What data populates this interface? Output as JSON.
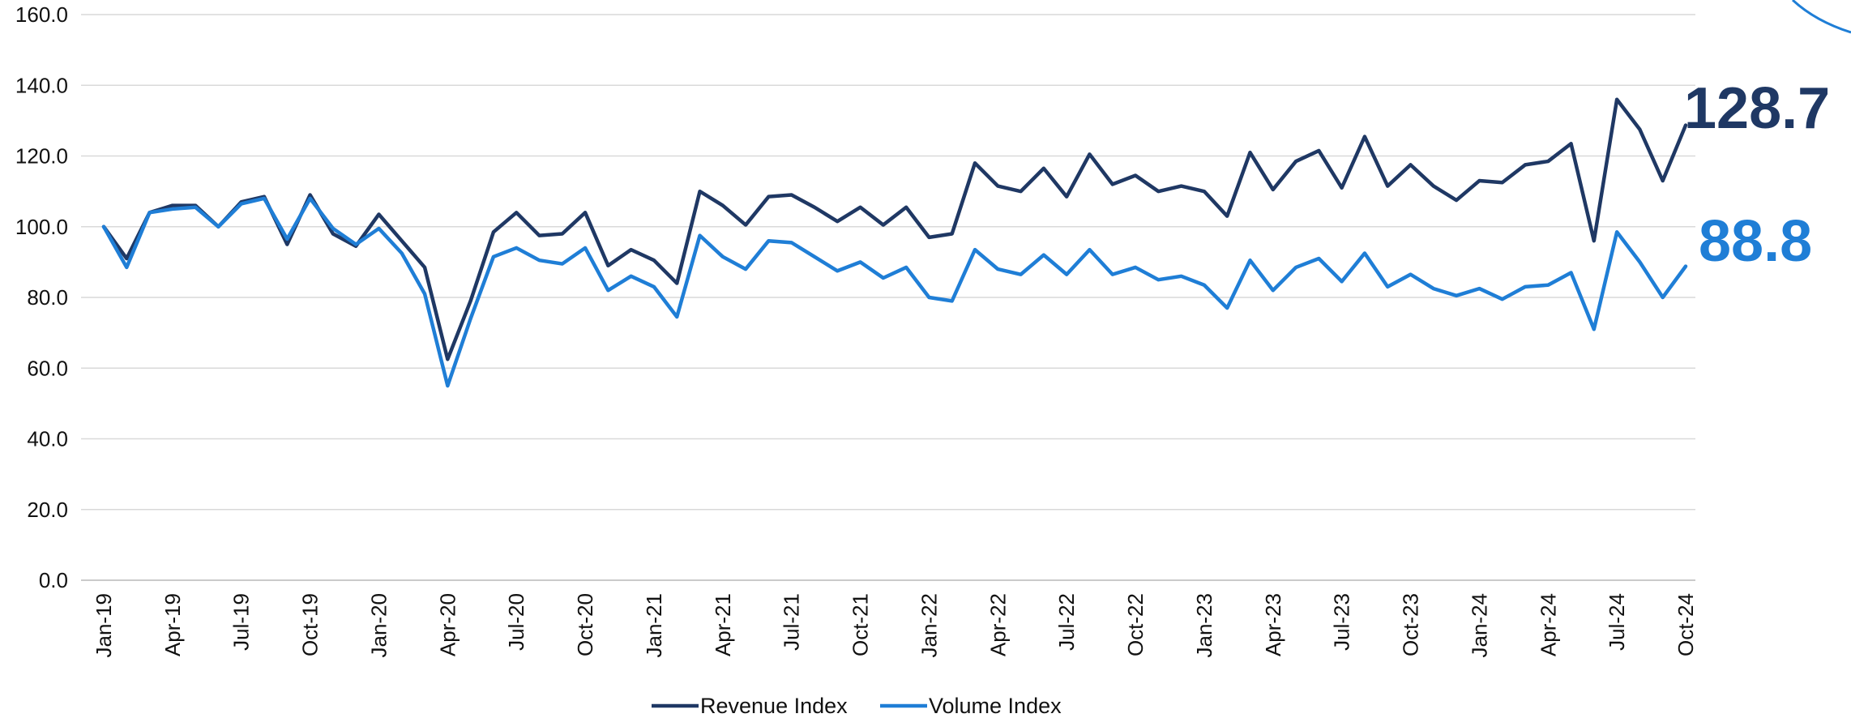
{
  "chart_data": {
    "type": "line",
    "title": "",
    "xlabel": "",
    "ylabel": "",
    "ylim": [
      0,
      160
    ],
    "yticks": [
      "0.0",
      "20.0",
      "40.0",
      "60.0",
      "80.0",
      "100.0",
      "120.0",
      "140.0",
      "160.0"
    ],
    "grid": true,
    "legend_position": "bottom",
    "x": [
      "Jan-19",
      "Feb-19",
      "Mar-19",
      "Apr-19",
      "May-19",
      "Jun-19",
      "Jul-19",
      "Aug-19",
      "Sep-19",
      "Oct-19",
      "Nov-19",
      "Dec-19",
      "Jan-20",
      "Feb-20",
      "Mar-20",
      "Apr-20",
      "May-20",
      "Jun-20",
      "Jul-20",
      "Aug-20",
      "Sep-20",
      "Oct-20",
      "Nov-20",
      "Dec-20",
      "Jan-21",
      "Feb-21",
      "Mar-21",
      "Apr-21",
      "May-21",
      "Jun-21",
      "Jul-21",
      "Aug-21",
      "Sep-21",
      "Oct-21",
      "Nov-21",
      "Dec-21",
      "Jan-22",
      "Feb-22",
      "Mar-22",
      "Apr-22",
      "May-22",
      "Jun-22",
      "Jul-22",
      "Aug-22",
      "Sep-22",
      "Oct-22",
      "Nov-22",
      "Dec-22",
      "Jan-23",
      "Feb-23",
      "Mar-23",
      "Apr-23",
      "May-23",
      "Jun-23",
      "Jul-23",
      "Aug-23",
      "Sep-23",
      "Oct-23",
      "Nov-23",
      "Dec-23",
      "Jan-24",
      "Feb-24",
      "Mar-24",
      "Apr-24",
      "May-24",
      "Jun-24",
      "Jul-24",
      "Aug-24",
      "Sep-24",
      "Oct-24"
    ],
    "xtick_labels": [
      "Jan-19",
      "Apr-19",
      "Jul-19",
      "Oct-19",
      "Jan-20",
      "Apr-20",
      "Jul-20",
      "Oct-20",
      "Jan-21",
      "Apr-21",
      "Jul-21",
      "Oct-21",
      "Jan-22",
      "Apr-22",
      "Jul-22",
      "Oct-22",
      "Jan-23",
      "Apr-23",
      "Jul-23",
      "Oct-23",
      "Jan-24",
      "Apr-24",
      "Jul-24",
      "Oct-24"
    ],
    "series": [
      {
        "name": "Revenue Index",
        "color": "#1F3864",
        "end_label": "128.7",
        "values": [
          100.0,
          91.0,
          104.0,
          106.0,
          106.0,
          100.0,
          107.0,
          108.5,
          95.0,
          109.0,
          98.0,
          94.5,
          103.5,
          96.0,
          88.5,
          62.5,
          79.0,
          98.5,
          104.0,
          97.5,
          98.0,
          104.0,
          89.0,
          93.5,
          90.5,
          84.0,
          110.0,
          106.0,
          100.5,
          108.5,
          109.0,
          105.5,
          101.5,
          105.5,
          100.5,
          105.5,
          97.0,
          98.0,
          118.0,
          111.5,
          110.0,
          116.5,
          108.5,
          120.5,
          112.0,
          114.5,
          110.0,
          111.5,
          110.0,
          103.0,
          121.0,
          110.5,
          118.5,
          121.5,
          111.0,
          125.5,
          111.5,
          117.5,
          111.5,
          107.5,
          113.0,
          112.5,
          117.5,
          118.5,
          123.5,
          96.0,
          136.0,
          127.5,
          113.0,
          128.7
        ]
      },
      {
        "name": "Volume Index",
        "color": "#1F7ED6",
        "end_label": "88.8",
        "values": [
          100.0,
          88.5,
          104.0,
          105.0,
          105.5,
          100.0,
          106.5,
          108.0,
          96.5,
          108.0,
          99.5,
          95.0,
          99.5,
          92.5,
          81.0,
          55.0,
          74.0,
          91.5,
          94.0,
          90.5,
          89.5,
          94.0,
          82.0,
          86.0,
          83.0,
          74.5,
          97.5,
          91.5,
          88.0,
          96.0,
          95.5,
          91.5,
          87.5,
          90.0,
          85.5,
          88.5,
          80.0,
          79.0,
          93.5,
          88.0,
          86.5,
          92.0,
          86.5,
          93.5,
          86.5,
          88.5,
          85.0,
          86.0,
          83.5,
          77.0,
          90.5,
          82.0,
          88.5,
          91.0,
          84.5,
          92.5,
          83.0,
          86.5,
          82.5,
          80.5,
          82.5,
          79.5,
          83.0,
          83.5,
          87.0,
          71.0,
          98.5,
          90.0,
          80.0,
          88.8
        ]
      }
    ]
  }
}
